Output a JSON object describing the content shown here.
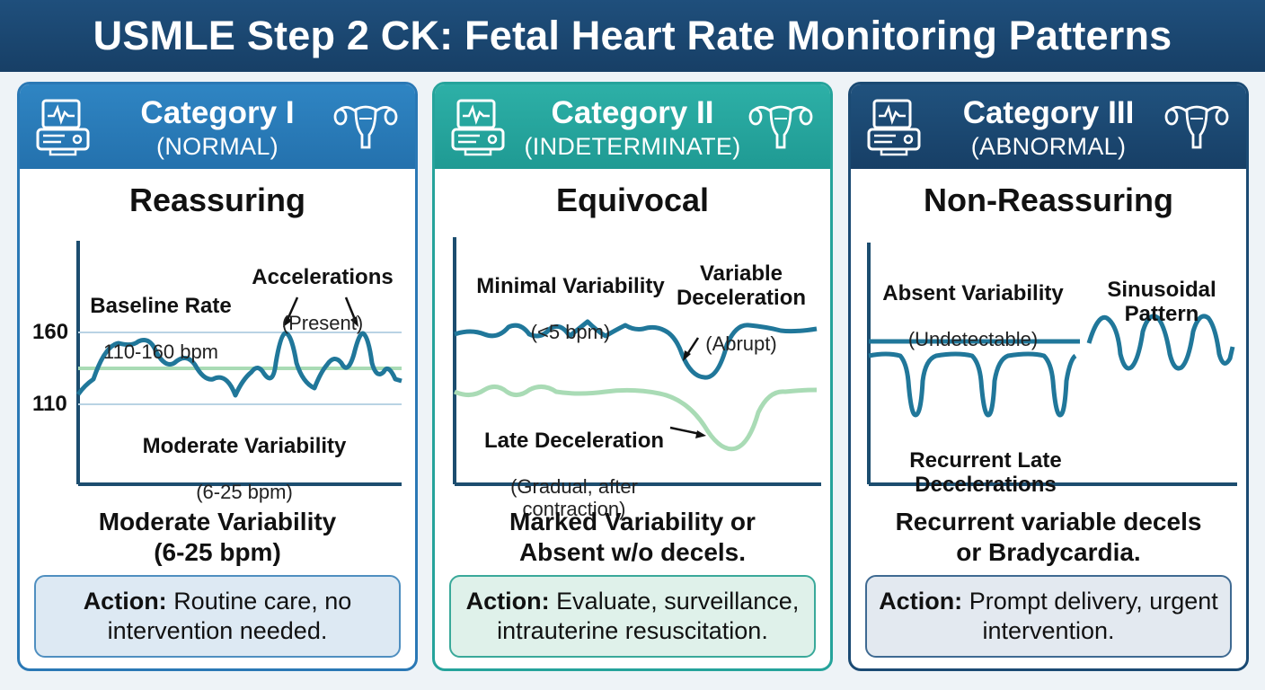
{
  "title": "USMLE Step 2 CK: Fetal Heart Rate Monitoring Patterns",
  "colors": {
    "title_bg": "#1f4f7c",
    "cat1": "#2a78b5",
    "cat2": "#25a39b",
    "cat3": "#1b4a73",
    "trace_dark": "#1f6f92",
    "trace_light": "#a9dbb5"
  },
  "categories": [
    {
      "name": "Category I",
      "sub": "(NORMAL)",
      "status": "Reassuring",
      "icons": [
        "fetal-monitor-icon",
        "uterus-icon"
      ],
      "labels": {
        "baseline_title": "Baseline Rate",
        "baseline_value": "110-160 bpm",
        "accel_title": "Accelerations",
        "accel_note": "(Present)",
        "var_title": "Moderate Variability",
        "var_note": "(6-25 bpm)",
        "y_high": "160",
        "y_low": "110"
      },
      "criteria": "Moderate Variability\n(6-25 bpm)",
      "action_label": "Action:",
      "action_text": "Routine care, no intervention needed."
    },
    {
      "name": "Category II",
      "sub": "(INDETERMINATE)",
      "status": "Equivocal",
      "icons": [
        "fetal-monitor-icon",
        "uterus-icon"
      ],
      "labels": {
        "minvar_title": "Minimal Variability",
        "minvar_note": "(<5 bpm)",
        "vardecel_title": "Variable\nDeceleration",
        "vardecel_note": "(Abrupt)",
        "late_title": "Late Deceleration",
        "late_note": "(Gradual, after\ncontraction)"
      },
      "criteria": "Marked Variability or\nAbsent w/o decels.",
      "action_label": "Action:",
      "action_text": "Evaluate, surveillance, intrauterine resuscitation."
    },
    {
      "name": "Category III",
      "sub": "(ABNORMAL)",
      "status": "Non-Reassuring",
      "icons": [
        "fetal-monitor-icon",
        "uterus-icon"
      ],
      "labels": {
        "absent_title": "Absent Variability",
        "absent_note": "(Undetectable)",
        "sin_title": "Sinusoidal\nPattern",
        "rld_title": "Recurrent Late\nDecelerations"
      },
      "criteria": "Recurrent variable decels\nor Bradycardia.",
      "action_label": "Action:",
      "action_text": "Prompt delivery, urgent intervention."
    }
  ]
}
